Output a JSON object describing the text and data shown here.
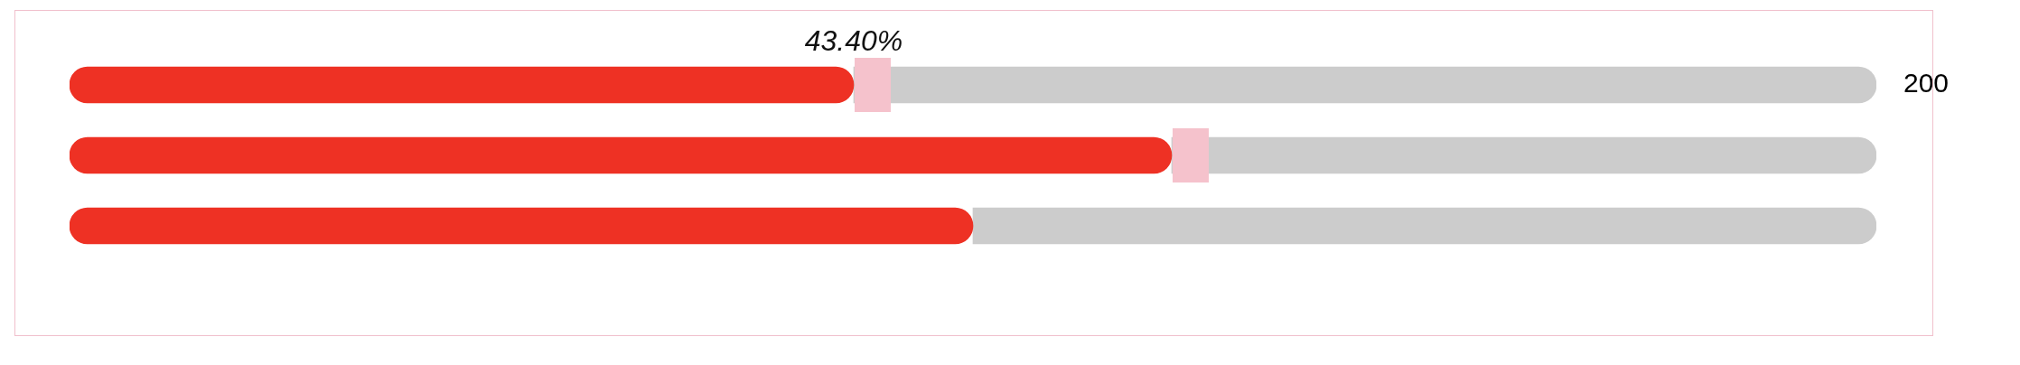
{
  "chart_data": {
    "type": "bar",
    "orientation": "horizontal",
    "stacked": true,
    "categories": [
      null,
      null,
      null
    ],
    "series": [
      {
        "color": "#ee3124",
        "values": [
          43.4,
          61,
          50
        ],
        "value_labels": [
          "43.40%",
          null,
          null
        ]
      },
      {
        "color": "#cccccc",
        "values": [
          56.6,
          39,
          50
        ]
      }
    ],
    "xlim": [
      0,
      100
    ],
    "annotations": [
      "200"
    ],
    "legend": false
  }
}
